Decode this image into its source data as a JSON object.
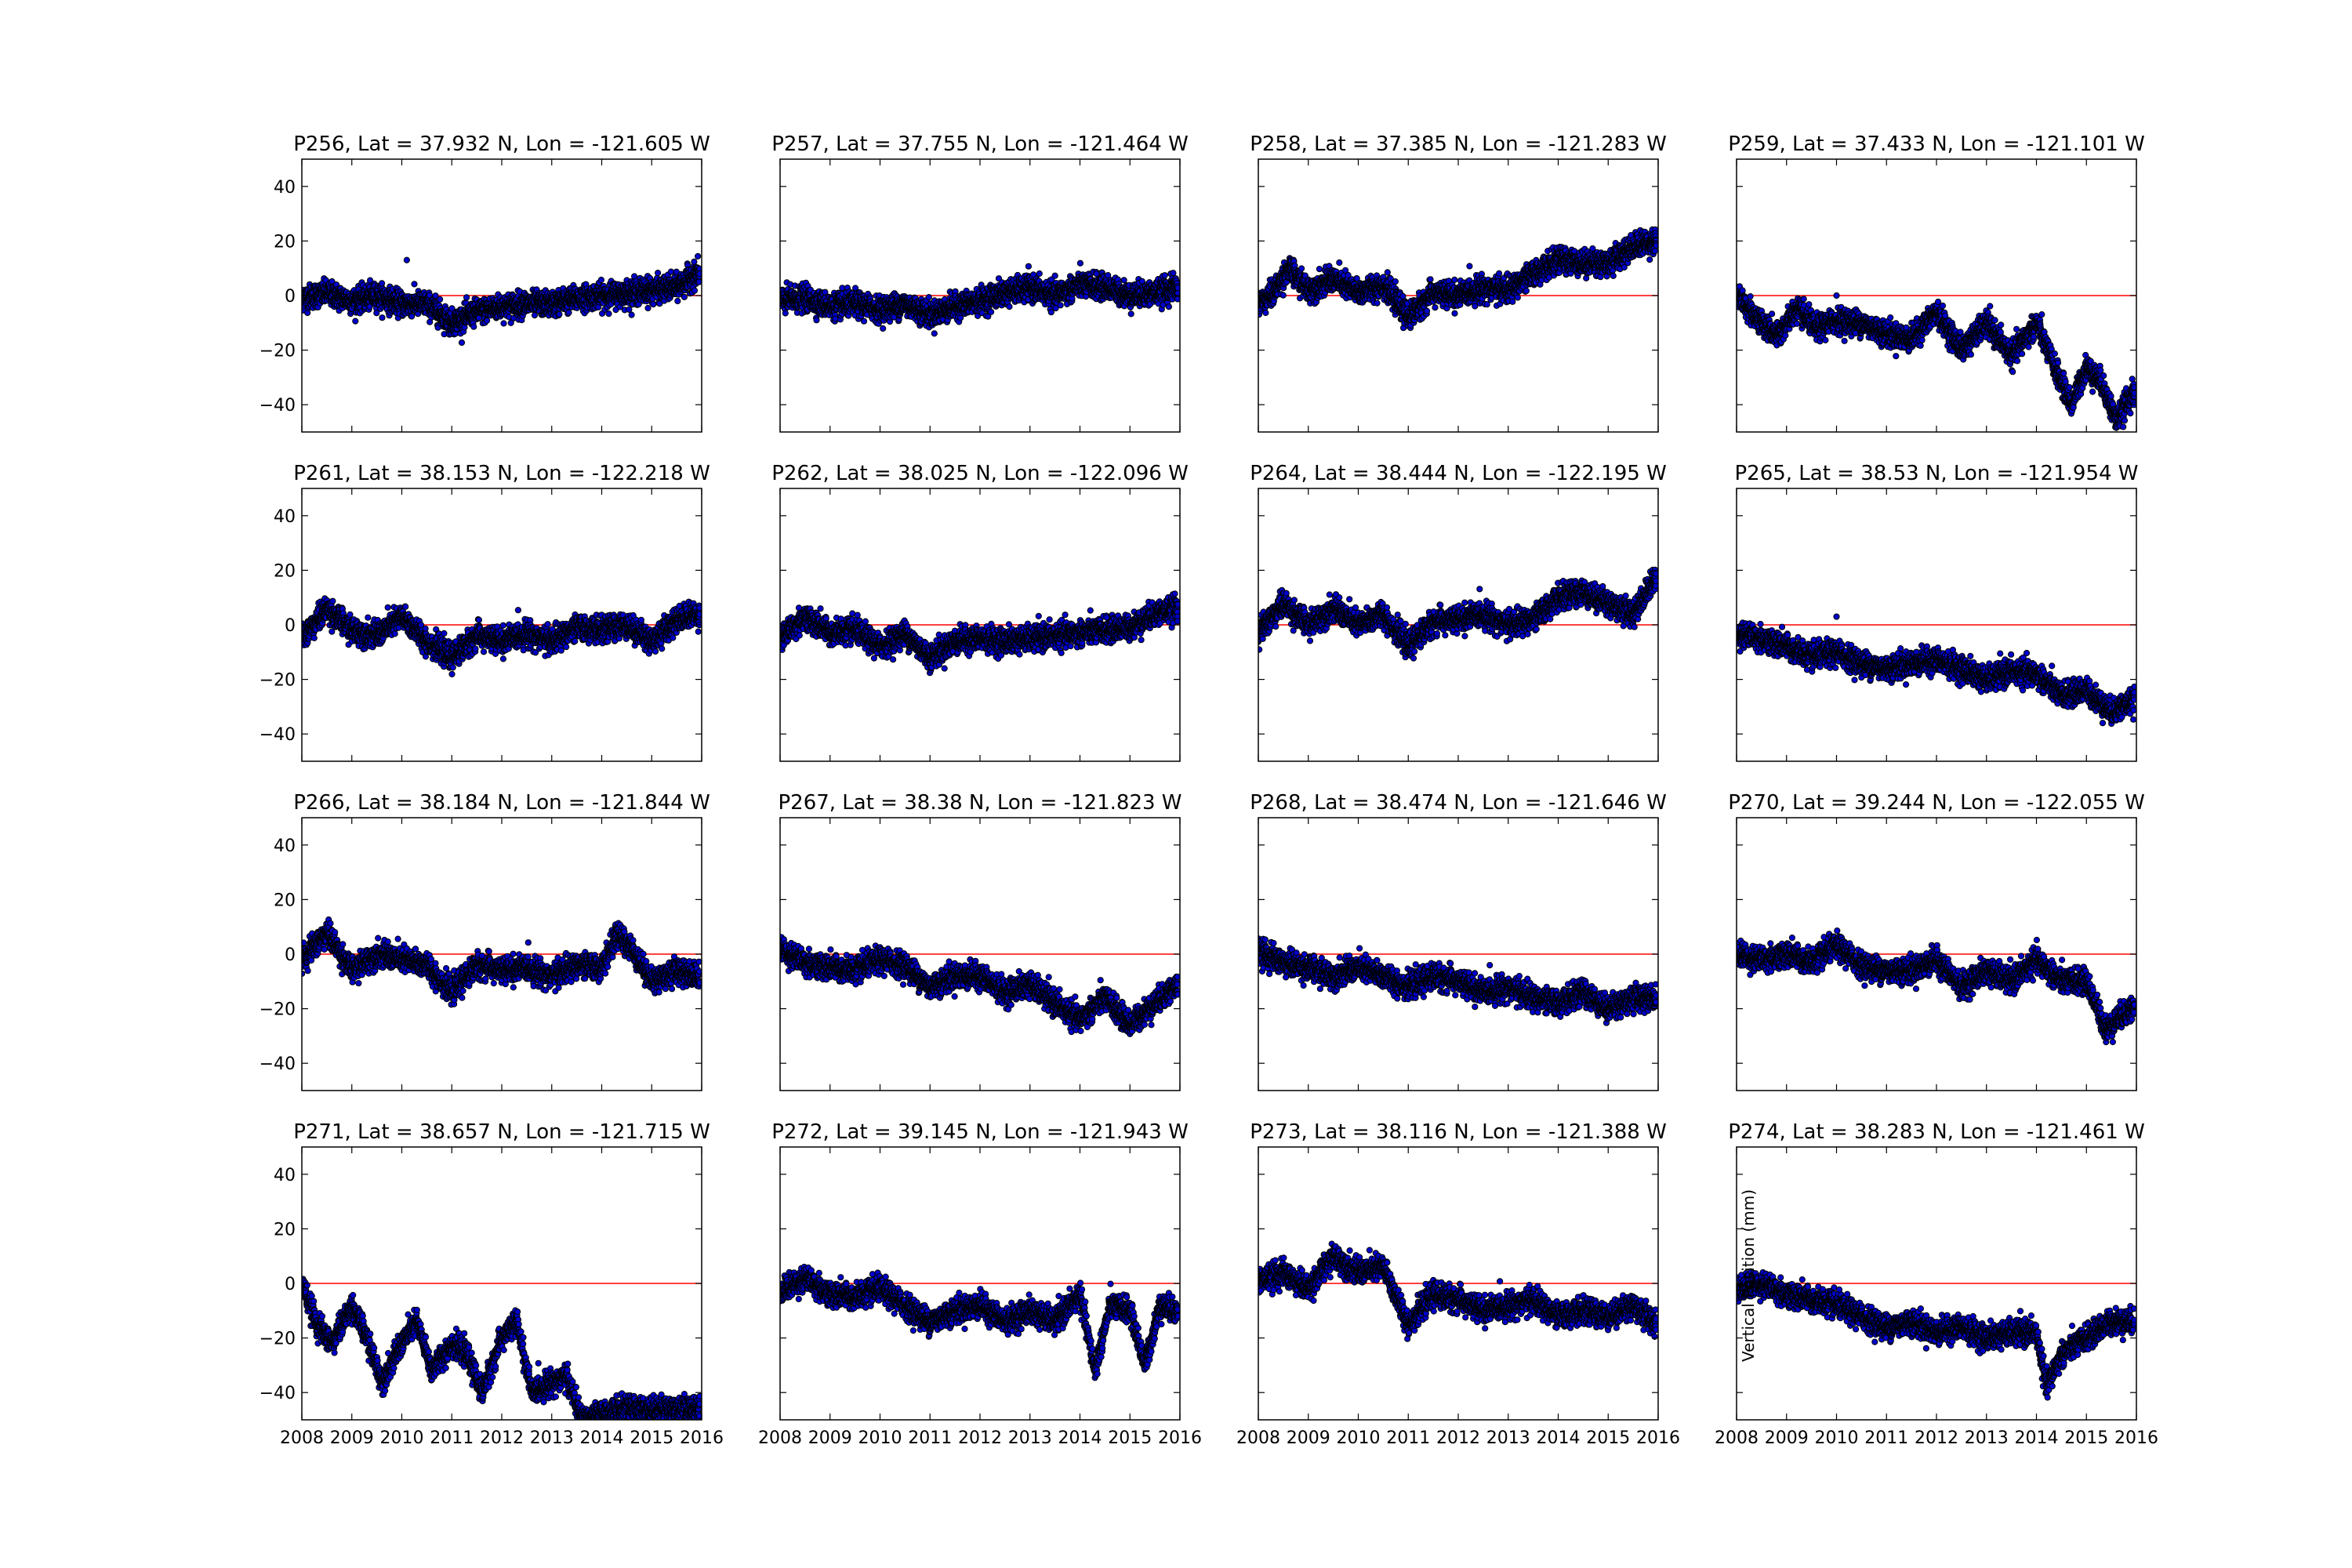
{
  "figure": {
    "ylabel": "Vertical Position (mm)",
    "ylabel_panel_index": 15
  },
  "chart_data": [
    {
      "type": "scatter",
      "title": "P256, Lat = 37.932 N, Lon = -121.605 W",
      "ylim": [
        -50,
        50
      ],
      "xlim": [
        2008,
        2016
      ],
      "yticks": [
        -40,
        -20,
        0,
        20,
        40
      ],
      "xticks": [
        2008,
        2009,
        2010,
        2011,
        2012,
        2013,
        2014,
        2015,
        2016
      ],
      "reference_line": 0,
      "series": [
        {
          "x": [
            2008,
            2008.5,
            2009,
            2009.5,
            2010,
            2010.5,
            2011,
            2011.5,
            2012,
            2012.5,
            2013,
            2013.5,
            2014,
            2014.5,
            2015,
            2015.5,
            2015.9
          ],
          "y": [
            -1,
            1,
            -2,
            0,
            -3,
            -3,
            -10,
            -6,
            -4,
            -3,
            -3,
            -1,
            0,
            1,
            2,
            3,
            8
          ]
        }
      ],
      "outliers": [
        {
          "x": 2010.1,
          "y": 13
        }
      ]
    },
    {
      "type": "scatter",
      "title": "P257, Lat = 37.755 N, Lon = -121.464 W",
      "ylim": [
        -50,
        50
      ],
      "xlim": [
        2008,
        2016
      ],
      "yticks": [
        -40,
        -20,
        0,
        20,
        40
      ],
      "xticks": [
        2008,
        2009,
        2010,
        2011,
        2012,
        2013,
        2014,
        2015,
        2016
      ],
      "reference_line": 0,
      "series": [
        {
          "x": [
            2008,
            2008.5,
            2009,
            2009.5,
            2010,
            2010.5,
            2011,
            2011.5,
            2012,
            2012.5,
            2013,
            2013.5,
            2014,
            2014.5,
            2015,
            2015.5,
            2015.9
          ],
          "y": [
            -2,
            -1,
            -4,
            -3,
            -5,
            -3,
            -7,
            -4,
            -2,
            1,
            3,
            0,
            4,
            3,
            0,
            1,
            3
          ]
        }
      ]
    },
    {
      "type": "scatter",
      "title": "P258, Lat = 37.385 N, Lon = -121.283 W",
      "ylim": [
        -50,
        50
      ],
      "xlim": [
        2008,
        2016
      ],
      "yticks": [
        -40,
        -20,
        0,
        20,
        40
      ],
      "xticks": [
        2008,
        2009,
        2010,
        2011,
        2012,
        2013,
        2014,
        2015,
        2016
      ],
      "reference_line": 0,
      "series": [
        {
          "x": [
            2008,
            2008.3,
            2008.6,
            2009,
            2009.5,
            2010,
            2010.5,
            2011,
            2011.5,
            2012,
            2012.5,
            2013,
            2013.5,
            2014,
            2014.5,
            2015,
            2015.5,
            2015.9
          ],
          "y": [
            -3,
            1,
            10,
            2,
            6,
            1,
            4,
            -8,
            1,
            0,
            3,
            2,
            8,
            13,
            12,
            12,
            18,
            20
          ]
        }
      ]
    },
    {
      "type": "scatter",
      "title": "P259, Lat = 37.433 N, Lon = -121.101 W",
      "ylim": [
        -50,
        50
      ],
      "xlim": [
        2008,
        2016
      ],
      "yticks": [
        -40,
        -20,
        0,
        20,
        40
      ],
      "xticks": [
        2008,
        2009,
        2010,
        2011,
        2012,
        2013,
        2014,
        2015,
        2016
      ],
      "reference_line": 0,
      "series": [
        {
          "x": [
            2008,
            2008.4,
            2008.8,
            2009.2,
            2009.6,
            2010,
            2010.5,
            2011,
            2011.5,
            2012,
            2012.5,
            2013,
            2013.5,
            2014,
            2014.4,
            2014.7,
            2015,
            2015.3,
            2015.6,
            2015.9
          ],
          "y": [
            0,
            -8,
            -15,
            -5,
            -12,
            -9,
            -10,
            -14,
            -16,
            -6,
            -20,
            -10,
            -22,
            -10,
            -28,
            -40,
            -26,
            -32,
            -46,
            -36
          ]
        }
      ],
      "outliers": [
        {
          "x": 2010.0,
          "y": 0
        }
      ]
    },
    {
      "type": "scatter",
      "title": "P261, Lat = 38.153 N, Lon = -122.218 W",
      "ylim": [
        -50,
        50
      ],
      "xlim": [
        2008,
        2016
      ],
      "yticks": [
        -40,
        -20,
        0,
        20,
        40
      ],
      "xticks": [
        2008,
        2009,
        2010,
        2011,
        2012,
        2013,
        2014,
        2015,
        2016
      ],
      "reference_line": 0,
      "series": [
        {
          "x": [
            2008,
            2008.5,
            2009,
            2009.5,
            2010,
            2010.5,
            2011,
            2011.5,
            2012,
            2012.5,
            2013,
            2013.5,
            2014,
            2014.5,
            2015,
            2015.5,
            2015.9
          ],
          "y": [
            -5,
            6,
            -2,
            -4,
            3,
            -6,
            -12,
            -4,
            -6,
            -3,
            -6,
            -1,
            -2,
            0,
            -6,
            2,
            4
          ]
        }
      ]
    },
    {
      "type": "scatter",
      "title": "P262, Lat = 38.025 N, Lon = -122.096 W",
      "ylim": [
        -50,
        50
      ],
      "xlim": [
        2008,
        2016
      ],
      "yticks": [
        -40,
        -20,
        0,
        20,
        40
      ],
      "xticks": [
        2008,
        2009,
        2010,
        2011,
        2012,
        2013,
        2014,
        2015,
        2016
      ],
      "reference_line": 0,
      "series": [
        {
          "x": [
            2008,
            2008.5,
            2009,
            2009.5,
            2010,
            2010.5,
            2011,
            2011.5,
            2012,
            2012.5,
            2013,
            2013.5,
            2014,
            2014.5,
            2015,
            2015.5,
            2015.9
          ],
          "y": [
            -5,
            3,
            -3,
            -2,
            -8,
            -3,
            -12,
            -6,
            -5,
            -6,
            -5,
            -4,
            -3,
            -2,
            -1,
            4,
            6
          ]
        }
      ]
    },
    {
      "type": "scatter",
      "title": "P264, Lat = 38.444 N, Lon = -122.195 W",
      "ylim": [
        -50,
        50
      ],
      "xlim": [
        2008,
        2016
      ],
      "yticks": [
        -40,
        -20,
        0,
        20,
        40
      ],
      "xticks": [
        2008,
        2009,
        2010,
        2011,
        2012,
        2013,
        2014,
        2015,
        2016
      ],
      "reference_line": 0,
      "series": [
        {
          "x": [
            2008,
            2008.5,
            2009,
            2009.5,
            2010,
            2010.5,
            2011,
            2011.5,
            2012,
            2012.5,
            2013,
            2013.5,
            2014,
            2014.5,
            2015,
            2015.5,
            2015.9
          ],
          "y": [
            -3,
            8,
            0,
            6,
            0,
            4,
            -8,
            1,
            2,
            4,
            0,
            2,
            10,
            12,
            8,
            4,
            16
          ]
        }
      ]
    },
    {
      "type": "scatter",
      "title": "P265, Lat = 38.53 N, Lon = -121.954 W",
      "ylim": [
        -50,
        50
      ],
      "xlim": [
        2008,
        2016
      ],
      "yticks": [
        -40,
        -20,
        0,
        20,
        40
      ],
      "xticks": [
        2008,
        2009,
        2010,
        2011,
        2012,
        2013,
        2014,
        2015,
        2016
      ],
      "reference_line": 0,
      "series": [
        {
          "x": [
            2008,
            2008.5,
            2009,
            2009.5,
            2010,
            2010.5,
            2011,
            2011.5,
            2012,
            2012.5,
            2013,
            2013.5,
            2014,
            2014.5,
            2015,
            2015.5,
            2015.9
          ],
          "y": [
            -3,
            -5,
            -8,
            -12,
            -10,
            -14,
            -16,
            -14,
            -13,
            -16,
            -20,
            -17,
            -18,
            -26,
            -24,
            -32,
            -28
          ]
        }
      ],
      "outliers": [
        {
          "x": 2010.0,
          "y": 3
        }
      ]
    },
    {
      "type": "scatter",
      "title": "P266, Lat = 38.184 N, Lon = -121.844 W",
      "ylim": [
        -50,
        50
      ],
      "xlim": [
        2008,
        2016
      ],
      "yticks": [
        -40,
        -20,
        0,
        20,
        40
      ],
      "xticks": [
        2008,
        2009,
        2010,
        2011,
        2012,
        2013,
        2014,
        2015,
        2016
      ],
      "reference_line": 0,
      "series": [
        {
          "x": [
            2008,
            2008.5,
            2009,
            2009.5,
            2010,
            2010.5,
            2011,
            2011.5,
            2012,
            2012.5,
            2013,
            2013.5,
            2014,
            2014.3,
            2014.6,
            2015,
            2015.5,
            2015.9
          ],
          "y": [
            -2,
            8,
            -6,
            0,
            -2,
            -4,
            -14,
            -4,
            -6,
            -5,
            -8,
            -4,
            -5,
            7,
            2,
            -10,
            -6,
            -8
          ]
        }
      ]
    },
    {
      "type": "scatter",
      "title": "P267, Lat = 38.38 N, Lon = -121.823 W",
      "ylim": [
        -50,
        50
      ],
      "xlim": [
        2008,
        2016
      ],
      "yticks": [
        -40,
        -20,
        0,
        20,
        40
      ],
      "xticks": [
        2008,
        2009,
        2010,
        2011,
        2012,
        2013,
        2014,
        2015,
        2016
      ],
      "reference_line": 0,
      "series": [
        {
          "x": [
            2008,
            2008.5,
            2009,
            2009.5,
            2010,
            2010.5,
            2011,
            2011.5,
            2012,
            2012.5,
            2013,
            2013.5,
            2014,
            2014.5,
            2015,
            2015.5,
            2015.9
          ],
          "y": [
            2,
            -3,
            -5,
            -6,
            -2,
            -4,
            -12,
            -8,
            -8,
            -14,
            -11,
            -18,
            -24,
            -16,
            -26,
            -18,
            -12
          ]
        }
      ]
    },
    {
      "type": "scatter",
      "title": "P268, Lat = 38.474 N, Lon = -121.646 W",
      "ylim": [
        -50,
        50
      ],
      "xlim": [
        2008,
        2016
      ],
      "yticks": [
        -40,
        -20,
        0,
        20,
        40
      ],
      "xticks": [
        2008,
        2009,
        2010,
        2011,
        2012,
        2013,
        2014,
        2015,
        2016
      ],
      "reference_line": 0,
      "series": [
        {
          "x": [
            2008,
            2008.5,
            2009,
            2009.5,
            2010,
            2010.5,
            2011,
            2011.5,
            2012,
            2012.5,
            2013,
            2013.5,
            2014,
            2014.5,
            2015,
            2015.5,
            2015.9
          ],
          "y": [
            1,
            -3,
            -5,
            -8,
            -5,
            -8,
            -12,
            -8,
            -10,
            -14,
            -12,
            -16,
            -18,
            -14,
            -20,
            -16,
            -16
          ]
        }
      ]
    },
    {
      "type": "scatter",
      "title": "P270, Lat = 39.244 N, Lon = -122.055 W",
      "ylim": [
        -50,
        50
      ],
      "xlim": [
        2008,
        2016
      ],
      "yticks": [
        -40,
        -20,
        0,
        20,
        40
      ],
      "xticks": [
        2008,
        2009,
        2010,
        2011,
        2012,
        2013,
        2014,
        2015,
        2016
      ],
      "reference_line": 0,
      "series": [
        {
          "x": [
            2008,
            2008.5,
            2009,
            2009.5,
            2010,
            2010.5,
            2011,
            2011.5,
            2012,
            2012.5,
            2013,
            2013.5,
            2014,
            2014.5,
            2015,
            2015.4,
            2015.6,
            2015.9
          ],
          "y": [
            0,
            -2,
            0,
            -3,
            3,
            -4,
            -6,
            -6,
            -2,
            -12,
            -6,
            -10,
            -2,
            -10,
            -10,
            -28,
            -24,
            -20
          ]
        }
      ]
    },
    {
      "type": "scatter",
      "title": "P271, Lat = 38.657 N, Lon = -121.715 W",
      "ylim": [
        -50,
        50
      ],
      "xlim": [
        2008,
        2016
      ],
      "yticks": [
        -40,
        -20,
        0,
        20,
        40
      ],
      "xticks": [
        2008,
        2009,
        2010,
        2011,
        2012,
        2013,
        2014,
        2015,
        2016
      ],
      "reference_line": 0,
      "series": [
        {
          "x": [
            2008,
            2008.3,
            2008.6,
            2009,
            2009.3,
            2009.6,
            2010,
            2010.3,
            2010.6,
            2011,
            2011.3,
            2011.6,
            2012,
            2012.3,
            2012.6,
            2013,
            2013.3,
            2013.6,
            2014,
            2014.4
          ],
          "y": [
            0,
            -15,
            -22,
            -8,
            -20,
            -36,
            -22,
            -14,
            -32,
            -22,
            -26,
            -40,
            -20,
            -14,
            -40,
            -36,
            -34,
            -50,
            -48,
            -46
          ]
        }
      ]
    },
    {
      "type": "scatter",
      "title": "P272, Lat = 39.145 N, Lon = -121.943 W",
      "ylim": [
        -50,
        50
      ],
      "xlim": [
        2008,
        2016
      ],
      "yticks": [
        -40,
        -20,
        0,
        20,
        40
      ],
      "xticks": [
        2008,
        2009,
        2010,
        2011,
        2012,
        2013,
        2014,
        2015,
        2016
      ],
      "reference_line": 0,
      "series": [
        {
          "x": [
            2008,
            2008.5,
            2009,
            2009.5,
            2010,
            2010.5,
            2011,
            2011.5,
            2012,
            2012.5,
            2013,
            2013.5,
            2014,
            2014.3,
            2014.6,
            2015,
            2015.3,
            2015.6,
            2015.9
          ],
          "y": [
            -3,
            2,
            -4,
            -5,
            -2,
            -8,
            -14,
            -10,
            -8,
            -14,
            -10,
            -14,
            -4,
            -32,
            -8,
            -10,
            -30,
            -8,
            -10
          ]
        }
      ]
    },
    {
      "type": "scatter",
      "title": "P273, Lat = 38.116 N, Lon = -121.388 W",
      "ylim": [
        -50,
        50
      ],
      "xlim": [
        2008,
        2016
      ],
      "yticks": [
        -40,
        -20,
        0,
        20,
        40
      ],
      "xticks": [
        2008,
        2009,
        2010,
        2011,
        2012,
        2013,
        2014,
        2015,
        2016
      ],
      "reference_line": 0,
      "series": [
        {
          "x": [
            2008,
            2008.5,
            2009,
            2009.5,
            2010,
            2010.5,
            2011,
            2011.5,
            2012,
            2012.5,
            2013,
            2013.5,
            2014,
            2014.5,
            2015,
            2015.5,
            2015.9
          ],
          "y": [
            1,
            4,
            -2,
            10,
            4,
            6,
            -15,
            -4,
            -6,
            -10,
            -8,
            -6,
            -12,
            -10,
            -12,
            -8,
            -14
          ]
        }
      ]
    },
    {
      "type": "scatter",
      "title": "P274, Lat = 38.283 N, Lon = -121.461 W",
      "ylim": [
        -50,
        50
      ],
      "xlim": [
        2008,
        2016
      ],
      "yticks": [
        -40,
        -20,
        0,
        20,
        40
      ],
      "xticks": [
        2008,
        2009,
        2010,
        2011,
        2012,
        2013,
        2014,
        2015,
        2016
      ],
      "reference_line": 0,
      "series": [
        {
          "x": [
            2008,
            2008.5,
            2009,
            2009.5,
            2010,
            2010.5,
            2011,
            2011.5,
            2012,
            2012.5,
            2013,
            2013.5,
            2014,
            2014.2,
            2014.5,
            2015,
            2015.5,
            2015.9
          ],
          "y": [
            -2,
            0,
            -4,
            -6,
            -8,
            -12,
            -16,
            -14,
            -18,
            -16,
            -20,
            -18,
            -18,
            -38,
            -26,
            -20,
            -14,
            -14
          ]
        }
      ]
    }
  ]
}
